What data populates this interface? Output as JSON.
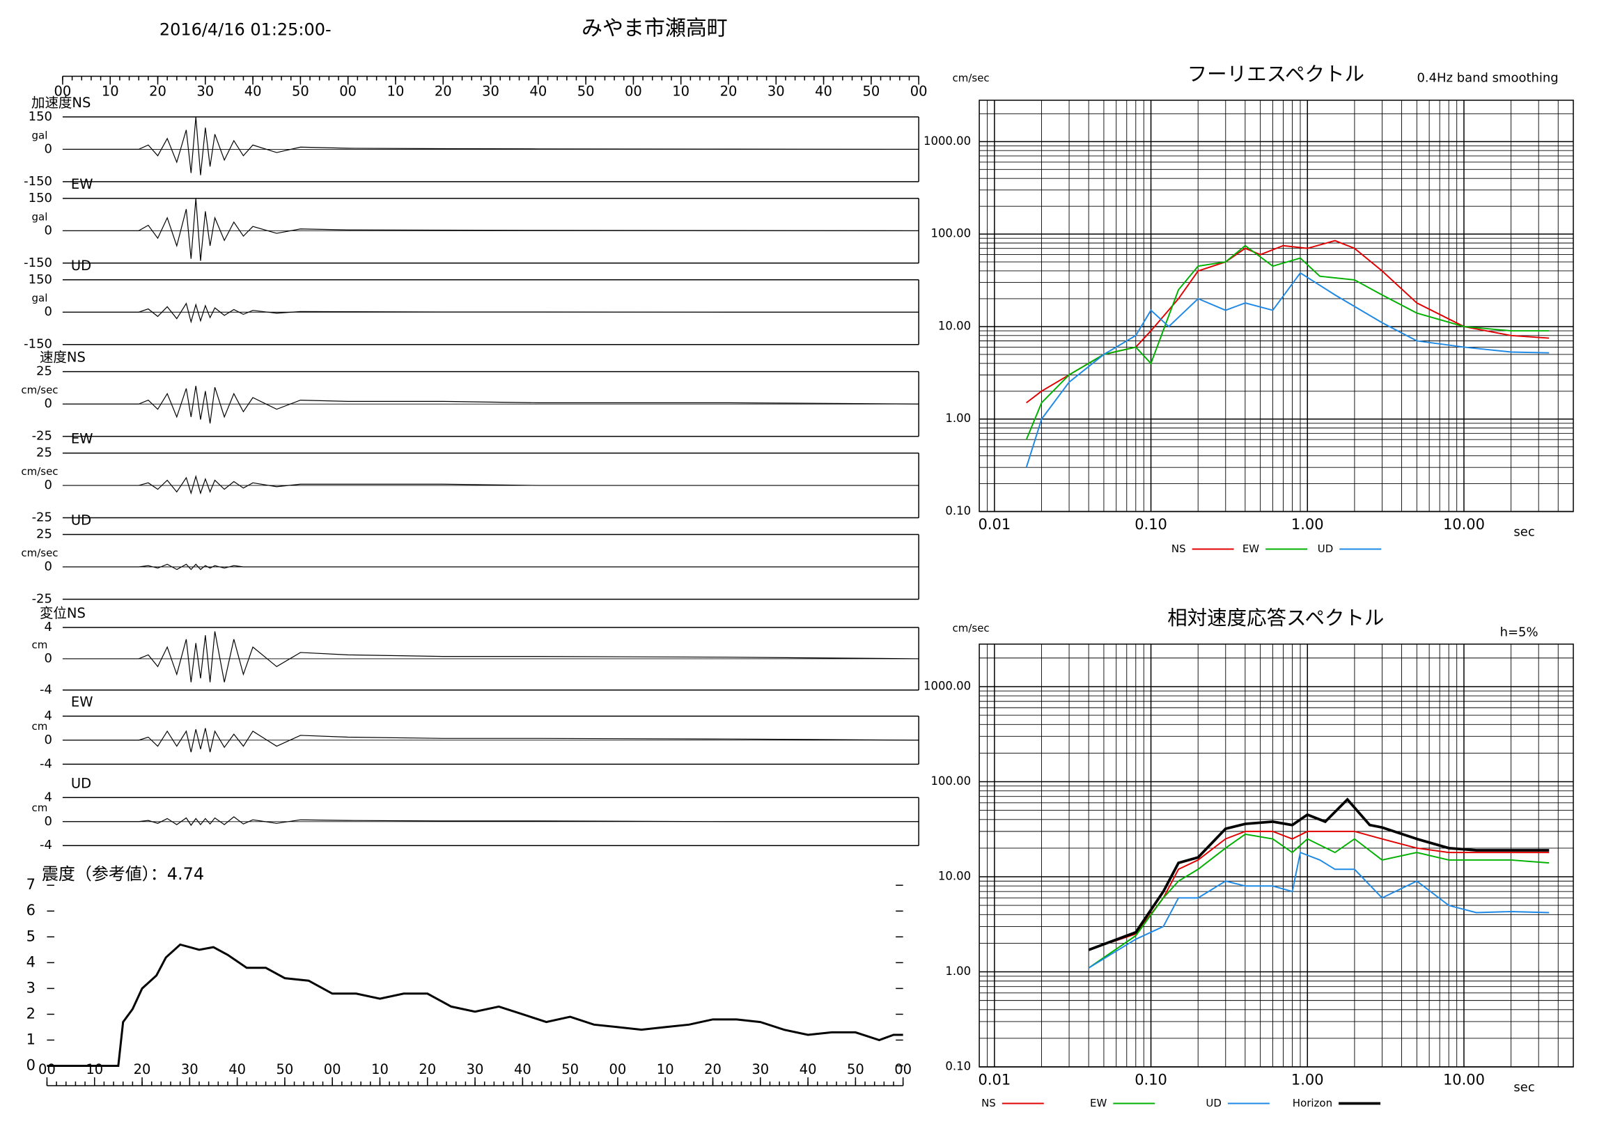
{
  "header": {
    "date": "2016/4/16 01:25:00-",
    "station": "みやま市瀬高町"
  },
  "chart_data": [
    {
      "type": "waveform",
      "label": "加速度NS",
      "unit": "gal",
      "xlim": [
        0,
        180
      ],
      "ylim": [
        -150,
        150
      ],
      "yticks": [
        150,
        0,
        -150
      ],
      "xticks": [
        {
          "value": 0,
          "label": "00"
        },
        10,
        20,
        30,
        40,
        50,
        {
          "value": 60,
          "label": "00"
        },
        {
          "value": 70,
          "label": "10"
        },
        {
          "value": 80,
          "label": "20"
        },
        {
          "value": 90,
          "label": "30"
        },
        {
          "value": 100,
          "label": "40"
        },
        {
          "value": 110,
          "label": "50"
        },
        {
          "value": 120,
          "label": "00"
        },
        {
          "value": 130,
          "label": "10"
        },
        {
          "value": 140,
          "label": "20"
        },
        {
          "value": 150,
          "label": "30"
        },
        {
          "value": 160,
          "label": "40"
        },
        {
          "value": 170,
          "label": "50"
        },
        {
          "value": 180,
          "label": "00"
        }
      ],
      "x": [
        0,
        16,
        18,
        20,
        22,
        24,
        26,
        27,
        28,
        29,
        30,
        31,
        32,
        34,
        36,
        38,
        40,
        45,
        50,
        60,
        80,
        100,
        140,
        180
      ],
      "values": [
        0,
        0,
        20,
        -30,
        50,
        -60,
        90,
        -110,
        150,
        -120,
        100,
        -80,
        70,
        -50,
        40,
        -30,
        20,
        -15,
        10,
        5,
        3,
        2,
        1,
        0
      ]
    },
    {
      "type": "waveform",
      "label": "EW",
      "unit": "gal",
      "xlim": [
        0,
        180
      ],
      "ylim": [
        -150,
        150
      ],
      "yticks": [
        150,
        0,
        -150
      ],
      "x": [
        0,
        16,
        18,
        20,
        22,
        24,
        26,
        27,
        28,
        29,
        30,
        31,
        32,
        34,
        36,
        38,
        40,
        45,
        50,
        60,
        80,
        100,
        140,
        180
      ],
      "values": [
        0,
        0,
        25,
        -35,
        60,
        -70,
        100,
        -130,
        150,
        -140,
        90,
        -70,
        60,
        -45,
        40,
        -25,
        20,
        -12,
        8,
        4,
        3,
        2,
        1,
        0
      ]
    },
    {
      "type": "waveform",
      "label": "UD",
      "unit": "gal",
      "xlim": [
        0,
        180
      ],
      "ylim": [
        -150,
        150
      ],
      "yticks": [
        150,
        0,
        -150
      ],
      "x": [
        0,
        16,
        18,
        20,
        22,
        24,
        26,
        27,
        28,
        29,
        30,
        31,
        32,
        34,
        36,
        38,
        40,
        45,
        50,
        60,
        80,
        100,
        140,
        180
      ],
      "values": [
        0,
        0,
        15,
        -20,
        25,
        -30,
        40,
        -45,
        35,
        -40,
        30,
        -25,
        20,
        -15,
        12,
        -10,
        8,
        -5,
        3,
        2,
        1,
        1,
        0,
        0
      ]
    },
    {
      "type": "waveform",
      "label": "速度NS",
      "unit": "cm/sec",
      "xlim": [
        0,
        180
      ],
      "ylim": [
        -25,
        25
      ],
      "yticks": [
        25,
        0,
        -25
      ],
      "x": [
        0,
        16,
        18,
        20,
        22,
        24,
        26,
        27,
        28,
        29,
        30,
        31,
        32,
        34,
        36,
        38,
        40,
        45,
        50,
        60,
        80,
        100,
        140,
        180
      ],
      "values": [
        0,
        0,
        3,
        -4,
        8,
        -10,
        12,
        -10,
        14,
        -12,
        10,
        -15,
        13,
        -10,
        8,
        -6,
        5,
        -4,
        3,
        2,
        2,
        1,
        1,
        0
      ]
    },
    {
      "type": "waveform",
      "label": "EW",
      "unit": "cm/sec",
      "xlim": [
        0,
        180
      ],
      "ylim": [
        -25,
        25
      ],
      "yticks": [
        25,
        0,
        -25
      ],
      "x": [
        0,
        16,
        18,
        20,
        22,
        24,
        26,
        27,
        28,
        29,
        30,
        31,
        32,
        34,
        36,
        38,
        40,
        45,
        50,
        60,
        80,
        100,
        140,
        180
      ],
      "values": [
        0,
        0,
        2,
        -3,
        4,
        -5,
        6,
        -6,
        7,
        -6,
        5,
        -5,
        4,
        -3,
        3,
        -2,
        2,
        -1,
        1,
        1,
        1,
        0,
        0,
        0
      ]
    },
    {
      "type": "waveform",
      "label": "UD",
      "unit": "cm/sec",
      "xlim": [
        0,
        180
      ],
      "ylim": [
        -25,
        25
      ],
      "yticks": [
        25,
        0,
        -25
      ],
      "x": [
        0,
        16,
        18,
        20,
        22,
        24,
        26,
        27,
        28,
        29,
        30,
        31,
        32,
        34,
        36,
        38,
        40,
        45,
        50,
        60,
        80,
        100,
        140,
        180
      ],
      "values": [
        0,
        0,
        1,
        -1,
        2,
        -2,
        2,
        -2,
        2,
        -2,
        1,
        -1,
        1,
        -1,
        1,
        0,
        0,
        0,
        0,
        0,
        0,
        0,
        0,
        0
      ]
    },
    {
      "type": "waveform",
      "label": "変位NS",
      "unit": "cm",
      "xlim": [
        0,
        180
      ],
      "ylim": [
        -4,
        4
      ],
      "yticks": [
        4,
        0,
        -4
      ],
      "x": [
        0,
        16,
        18,
        20,
        22,
        24,
        26,
        27,
        28,
        29,
        30,
        31,
        32,
        34,
        36,
        38,
        40,
        45,
        50,
        60,
        80,
        100,
        140,
        180
      ],
      "values": [
        0,
        0,
        0.5,
        -1,
        1.5,
        -2,
        2.5,
        -3,
        2,
        -2.5,
        3,
        -3,
        3.5,
        -3,
        2.5,
        -2,
        1.5,
        -1,
        0.8,
        0.5,
        0.3,
        0.3,
        0.2,
        0
      ]
    },
    {
      "type": "waveform",
      "label": "EW",
      "unit": "cm",
      "xlim": [
        0,
        180
      ],
      "ylim": [
        -4,
        4
      ],
      "yticks": [
        4,
        0,
        -4
      ],
      "x": [
        0,
        16,
        18,
        20,
        22,
        24,
        26,
        27,
        28,
        29,
        30,
        31,
        32,
        34,
        36,
        38,
        40,
        45,
        50,
        60,
        80,
        100,
        140,
        180
      ],
      "values": [
        0,
        0,
        0.5,
        -1,
        1.5,
        -1,
        1.5,
        -2,
        1.8,
        -1.5,
        2,
        -2,
        1.5,
        -1.2,
        1,
        -1,
        1.5,
        -1,
        0.8,
        0.5,
        0.3,
        0.3,
        0.2,
        0
      ]
    },
    {
      "type": "waveform",
      "label": "UD",
      "unit": "cm",
      "xlim": [
        0,
        180
      ],
      "ylim": [
        -4,
        4
      ],
      "yticks": [
        4,
        0,
        -4
      ],
      "x": [
        0,
        16,
        18,
        20,
        22,
        24,
        26,
        27,
        28,
        29,
        30,
        31,
        32,
        34,
        36,
        38,
        40,
        45,
        50,
        60,
        80,
        100,
        140,
        180
      ],
      "values": [
        0,
        0,
        0.2,
        -0.3,
        0.5,
        -0.5,
        0.6,
        -0.6,
        0.5,
        -0.5,
        0.5,
        -0.4,
        0.6,
        -0.5,
        0.8,
        -0.4,
        0.3,
        -0.3,
        0.3,
        0.2,
        0.1,
        0.1,
        0,
        0
      ]
    },
    {
      "type": "line",
      "title": "震度（参考値）：4.74",
      "color": "#000000",
      "xlim": [
        0,
        180
      ],
      "ylim": [
        0,
        7
      ],
      "yticks": [
        0,
        1,
        2,
        3,
        4,
        5,
        6,
        7
      ],
      "xticks": [
        {
          "value": 0,
          "label": "00"
        },
        10,
        20,
        30,
        40,
        50,
        {
          "value": 60,
          "label": "00"
        },
        {
          "value": 70,
          "label": "10"
        },
        {
          "value": 80,
          "label": "20"
        },
        {
          "value": 90,
          "label": "30"
        },
        {
          "value": 100,
          "label": "40"
        },
        {
          "value": 110,
          "label": "50"
        },
        {
          "value": 120,
          "label": "00"
        },
        {
          "value": 130,
          "label": "10"
        },
        {
          "value": 140,
          "label": "20"
        },
        {
          "value": 150,
          "label": "30"
        },
        {
          "value": 160,
          "label": "40"
        },
        {
          "value": 170,
          "label": "50"
        },
        {
          "value": 180,
          "label": "00"
        }
      ],
      "x": [
        0,
        15,
        16,
        18,
        20,
        23,
        25,
        28,
        32,
        35,
        38,
        42,
        46,
        50,
        55,
        60,
        65,
        70,
        75,
        80,
        85,
        90,
        95,
        100,
        105,
        110,
        115,
        120,
        125,
        130,
        135,
        140,
        145,
        150,
        155,
        160,
        165,
        170,
        175,
        178,
        180
      ],
      "values": [
        0,
        0,
        1.7,
        2.2,
        3,
        3.5,
        4.2,
        4.7,
        4.5,
        4.6,
        4.3,
        3.8,
        3.8,
        3.4,
        3.3,
        2.8,
        2.8,
        2.6,
        2.8,
        2.8,
        2.3,
        2.1,
        2.3,
        2.0,
        1.7,
        1.9,
        1.6,
        1.5,
        1.4,
        1.5,
        1.6,
        1.8,
        1.8,
        1.7,
        1.4,
        1.2,
        1.3,
        1.3,
        1.0,
        1.2,
        1.2
      ]
    },
    {
      "type": "line",
      "log": true,
      "title": "フーリエスペクトル",
      "note": "0.4Hz band smoothing",
      "y_unit": "cm/sec",
      "x_unit": "sec",
      "xlim": [
        0.008,
        50
      ],
      "ylim": [
        0.1,
        2800
      ],
      "xticks": [
        {
          "value": 0.01,
          "label": "0.01"
        },
        {
          "value": 0.1,
          "label": "0.10"
        },
        {
          "value": 1,
          "label": "1.00"
        },
        {
          "value": 10,
          "label": "10.00"
        }
      ],
      "yticks": [
        {
          "value": 0.1,
          "label": "0.10"
        },
        {
          "value": 1,
          "label": "1.00"
        },
        {
          "value": 10,
          "label": "10.00"
        },
        {
          "value": 100,
          "label": "100.00"
        },
        {
          "value": 1000,
          "label": "1000.00"
        }
      ],
      "series": [
        {
          "name": "NS",
          "color": "#e00000",
          "x": [
            0.016,
            0.02,
            0.03,
            0.05,
            0.08,
            0.1,
            0.15,
            0.2,
            0.3,
            0.4,
            0.5,
            0.7,
            1.0,
            1.5,
            2,
            3,
            5,
            10,
            20,
            35
          ],
          "values": [
            1.5,
            2,
            3,
            5,
            6,
            9,
            20,
            40,
            50,
            70,
            60,
            75,
            70,
            85,
            70,
            40,
            18,
            10,
            8,
            7.5
          ]
        },
        {
          "name": "EW",
          "color": "#00b000",
          "x": [
            0.016,
            0.02,
            0.03,
            0.05,
            0.08,
            0.1,
            0.15,
            0.2,
            0.3,
            0.4,
            0.6,
            0.9,
            1.2,
            2,
            3,
            5,
            10,
            20,
            35
          ],
          "values": [
            0.6,
            1.5,
            3,
            5,
            6,
            4,
            25,
            45,
            50,
            75,
            45,
            55,
            35,
            32,
            22,
            14,
            10,
            9,
            9
          ]
        },
        {
          "name": "UD",
          "color": "#1e88e5",
          "x": [
            0.016,
            0.02,
            0.03,
            0.05,
            0.08,
            0.1,
            0.13,
            0.2,
            0.3,
            0.4,
            0.6,
            0.9,
            1.5,
            3,
            5,
            10,
            20,
            35
          ],
          "values": [
            0.3,
            1,
            2.5,
            5,
            8,
            15,
            10,
            20,
            15,
            18,
            15,
            38,
            22,
            11,
            7,
            6,
            5.3,
            5.2
          ]
        }
      ]
    },
    {
      "type": "line",
      "log": true,
      "title": "相対速度応答スペクトル",
      "note": "h=5%",
      "y_unit": "cm/sec",
      "x_unit": "sec",
      "xlim": [
        0.008,
        50
      ],
      "ylim": [
        0.1,
        2800
      ],
      "xticks": [
        {
          "value": 0.01,
          "label": "0.01"
        },
        {
          "value": 0.1,
          "label": "0.10"
        },
        {
          "value": 1,
          "label": "1.00"
        },
        {
          "value": 10,
          "label": "10.00"
        }
      ],
      "yticks": [
        {
          "value": 0.1,
          "label": "0.10"
        },
        {
          "value": 1,
          "label": "1.00"
        },
        {
          "value": 10,
          "label": "10.00"
        },
        {
          "value": 100,
          "label": "100.00"
        },
        {
          "value": 1000,
          "label": "1000.00"
        }
      ],
      "series": [
        {
          "name": "NS",
          "color": "#e00000",
          "x": [
            0.04,
            0.08,
            0.12,
            0.15,
            0.2,
            0.3,
            0.4,
            0.6,
            0.8,
            1,
            1.5,
            2,
            3,
            5,
            8,
            12,
            20,
            35
          ],
          "values": [
            1.7,
            2.5,
            6,
            12,
            15,
            25,
            30,
            30,
            25,
            30,
            30,
            30,
            25,
            20,
            18,
            18,
            18,
            18
          ]
        },
        {
          "name": "EW",
          "color": "#00b000",
          "x": [
            0.04,
            0.08,
            0.12,
            0.15,
            0.2,
            0.3,
            0.4,
            0.6,
            0.8,
            1,
            1.5,
            2,
            3,
            5,
            8,
            12,
            20,
            35
          ],
          "values": [
            1.1,
            2.4,
            6,
            9,
            12,
            20,
            28,
            25,
            18,
            25,
            18,
            25,
            15,
            18,
            15,
            15,
            15,
            14
          ]
        },
        {
          "name": "UD",
          "color": "#1e88e5",
          "x": [
            0.04,
            0.08,
            0.12,
            0.15,
            0.2,
            0.3,
            0.4,
            0.6,
            0.8,
            0.9,
            1.2,
            1.5,
            2,
            3,
            5,
            8,
            12,
            20,
            35
          ],
          "values": [
            1.1,
            2.2,
            3,
            6,
            6,
            9,
            8,
            8,
            7,
            18,
            15,
            12,
            12,
            6,
            9,
            5,
            4.2,
            4.3,
            4.2
          ]
        },
        {
          "name": "Horizon",
          "color": "#000000",
          "x": [
            0.04,
            0.08,
            0.12,
            0.15,
            0.2,
            0.3,
            0.4,
            0.6,
            0.8,
            1,
            1.3,
            1.8,
            2.5,
            3,
            5,
            8,
            12,
            20,
            35
          ],
          "values": [
            1.7,
            2.6,
            7,
            14,
            16,
            32,
            36,
            38,
            35,
            45,
            38,
            65,
            35,
            33,
            25,
            20,
            19,
            19,
            19
          ]
        }
      ]
    }
  ]
}
